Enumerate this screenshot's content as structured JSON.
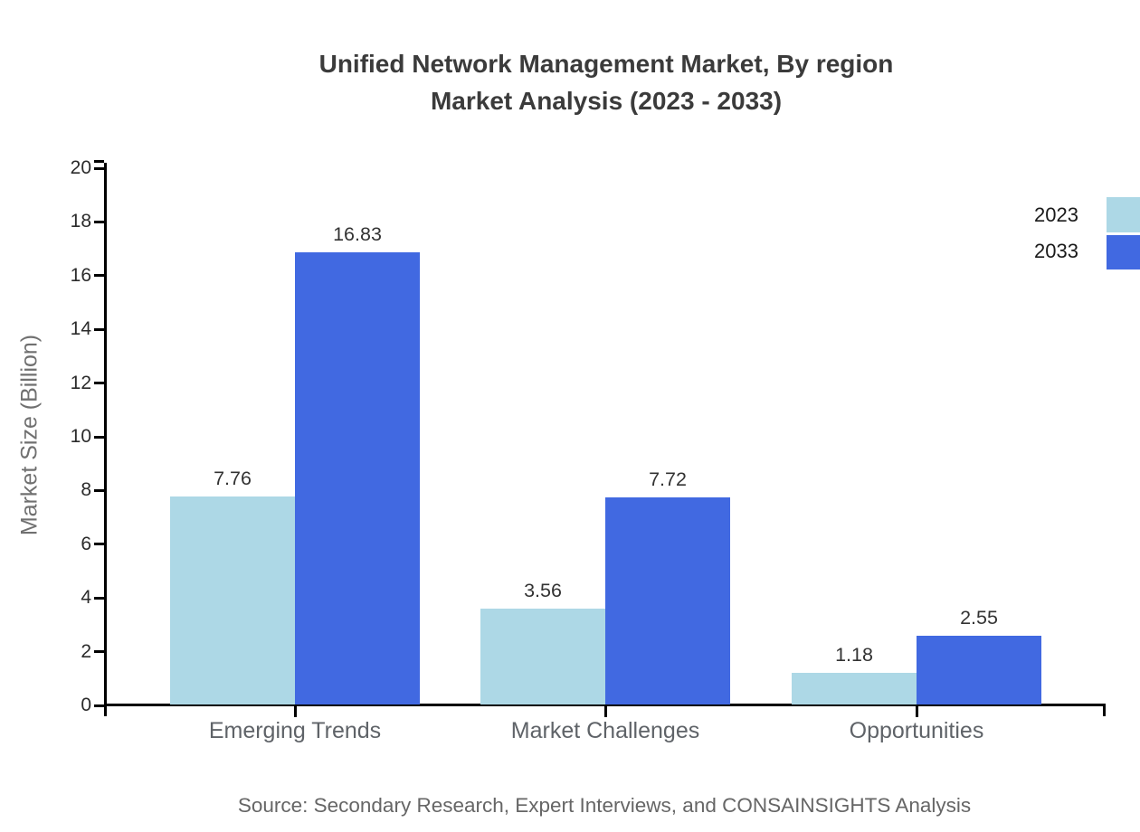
{
  "chart_data": {
    "type": "bar",
    "title": "Unified Network Management Market, By region Market Analysis (2023 - 2033)",
    "title_line1": "Unified Network Management Market, By region",
    "title_line2": "Market Analysis (2023 - 2033)",
    "categories": [
      "Emerging Trends",
      "Market Challenges",
      "Opportunities"
    ],
    "series": [
      {
        "name": "2023",
        "color": "#ADD8E6",
        "values": [
          7.76,
          3.56,
          1.18
        ]
      },
      {
        "name": "2033",
        "color": "#4169E1",
        "values": [
          16.83,
          7.72,
          2.55
        ]
      }
    ],
    "xlabel": "",
    "ylabel": "Market Size (Billion)",
    "ylim": [
      0,
      20
    ],
    "yticks": [
      0,
      2,
      4,
      6,
      8,
      10,
      12,
      14,
      16,
      18,
      20
    ],
    "grid": false,
    "value_labels": true,
    "legend_position": "top-right",
    "source": "Source: Secondary Research, Expert Interviews, and CONSAINSIGHTS Analysis"
  },
  "colors": {
    "axis": "#000000",
    "title_text": "#3b3b3b",
    "tick_text": "#2b2b2b",
    "category_text": "#5f6368",
    "value_text": "#333333",
    "source_text": "#666666",
    "series_2023": "#ADD8E6",
    "series_2033": "#4169E1"
  }
}
